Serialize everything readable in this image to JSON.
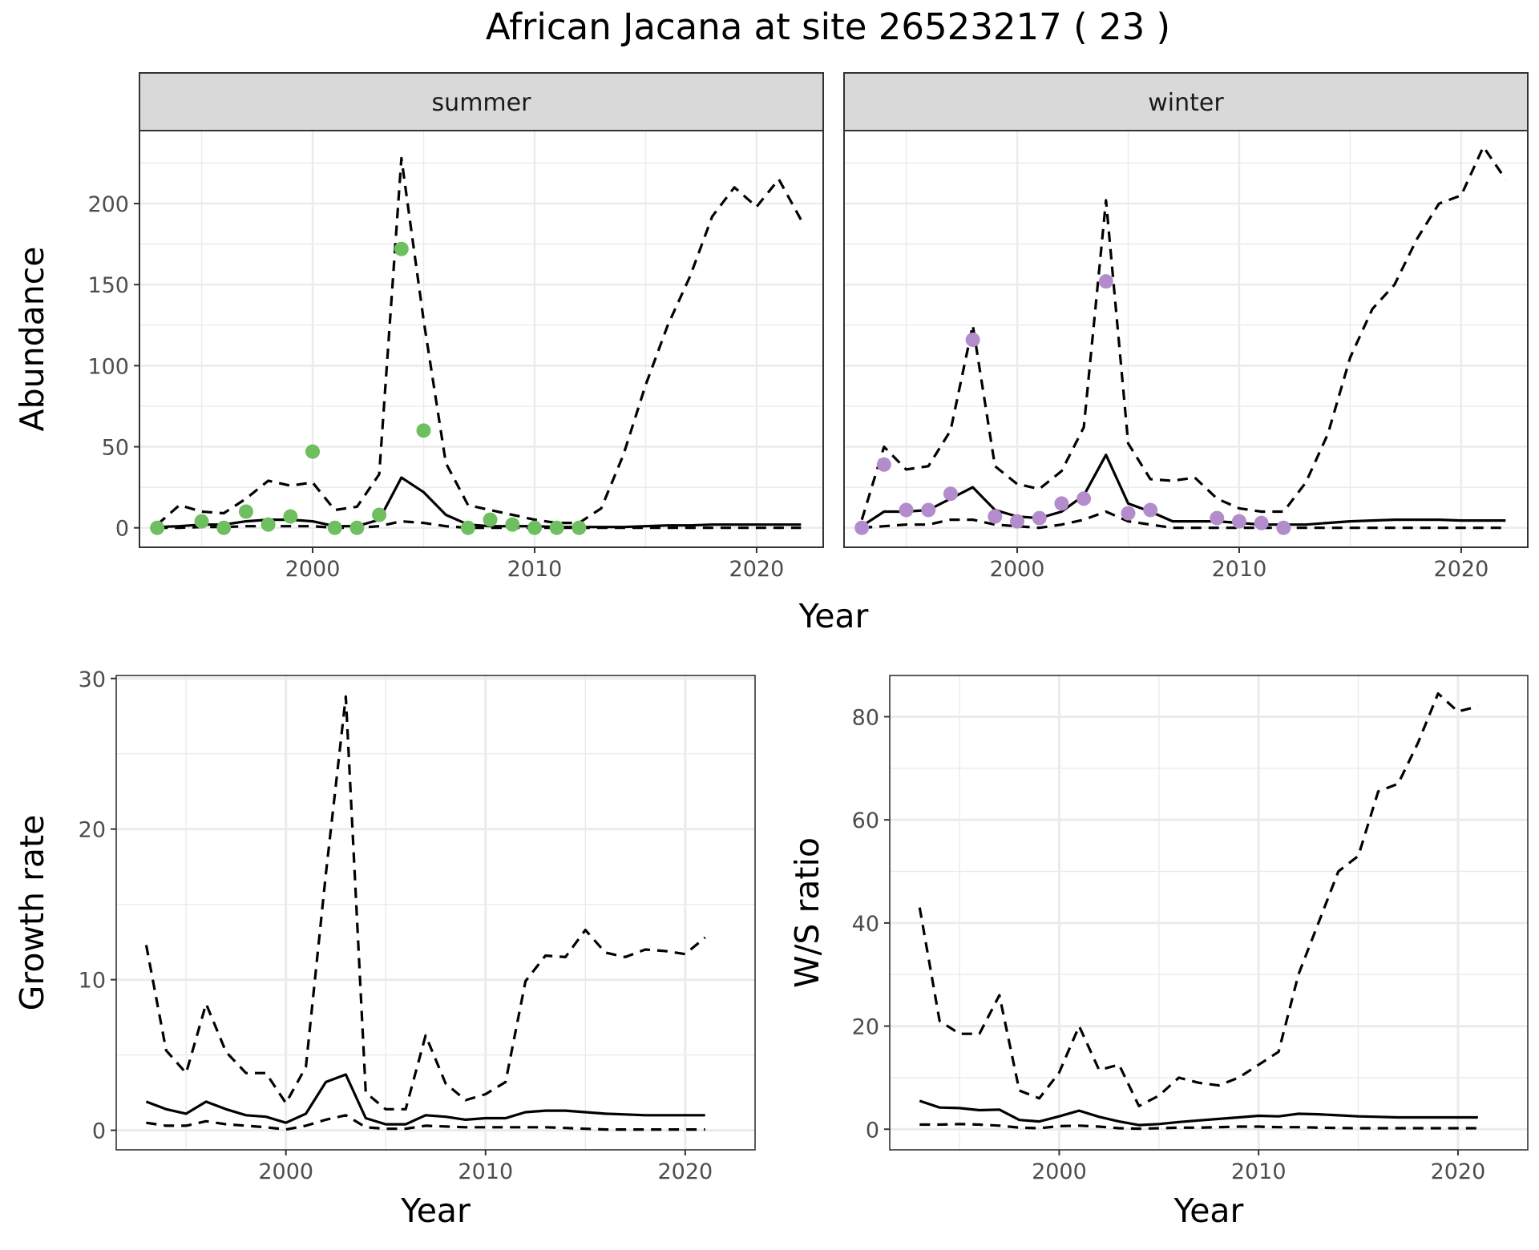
{
  "title": "African Jacana at site 26523217 ( 23 )",
  "colors": {
    "summer_points": "#6dbf5f",
    "winter_points": "#b38dcb",
    "line": "#000000",
    "strip_fill": "#d9d9d9",
    "grid": "#ebebeb"
  },
  "chart_data": [
    {
      "id": "abundance-summer",
      "type": "line",
      "facet": "summer",
      "xlabel": "Year",
      "ylabel": "Abundance",
      "xlim": [
        1992.2,
        2023.0
      ],
      "ylim": [
        -12,
        245
      ],
      "xticks": [
        2000,
        2010,
        2020
      ],
      "yticks": [
        0,
        50,
        100,
        150,
        200
      ],
      "grid": true,
      "series": [
        {
          "style": "solid",
          "x": [
            1993,
            1994,
            1995,
            1996,
            1997,
            1998,
            1999,
            2000,
            2001,
            2002,
            2003,
            2004,
            2005,
            2006,
            2007,
            2008,
            2009,
            2010,
            2011,
            2012,
            2013,
            2014,
            2015,
            2016,
            2017,
            2018,
            2019,
            2020,
            2021,
            2022
          ],
          "y": [
            0.5,
            1,
            2,
            2,
            4,
            5,
            5,
            4,
            1,
            1,
            5,
            31,
            22,
            8,
            2,
            1,
            1,
            1,
            0.5,
            0.5,
            0.5,
            0.5,
            1,
            1.5,
            1.5,
            2,
            2,
            2,
            2,
            2
          ]
        },
        {
          "style": "dashed",
          "x": [
            1993,
            1994,
            1995,
            1996,
            1997,
            1998,
            1999,
            2000,
            2001,
            2002,
            2003,
            2004,
            2005,
            2006,
            2007,
            2008,
            2009,
            2010,
            2011,
            2012,
            2013,
            2014,
            2015,
            2016,
            2017,
            2018,
            2019,
            2020,
            2021,
            2022
          ],
          "y": [
            2,
            14,
            10,
            9,
            18,
            29,
            26,
            28,
            11,
            13,
            33,
            228,
            128,
            40,
            14,
            11,
            8,
            5,
            3,
            3,
            12,
            45,
            88,
            125,
            155,
            192,
            210,
            198,
            215,
            190
          ]
        },
        {
          "style": "dashed",
          "x": [
            1993,
            1994,
            1995,
            1996,
            1997,
            1998,
            1999,
            2000,
            2001,
            2002,
            2003,
            2004,
            2005,
            2006,
            2007,
            2008,
            2009,
            2010,
            2011,
            2012,
            2013,
            2014,
            2015,
            2016,
            2017,
            2018,
            2019,
            2020,
            2021,
            2022
          ],
          "y": [
            0,
            0,
            0.5,
            0.5,
            1,
            1,
            1,
            1,
            0,
            0,
            1,
            4,
            3,
            1,
            0,
            0,
            0,
            0,
            0,
            0,
            0,
            0,
            0,
            0,
            0,
            0,
            0,
            0,
            0,
            0
          ]
        },
        {
          "style": "points",
          "x": [
            1993,
            1995,
            1996,
            1997,
            1998,
            1999,
            2000,
            2001,
            2002,
            2003,
            2004,
            2005,
            2007,
            2008,
            2009,
            2010,
            2011,
            2012
          ],
          "y": [
            0,
            4,
            0,
            10,
            2,
            7,
            47,
            0,
            0,
            8,
            172,
            60,
            0,
            5,
            2,
            0,
            0,
            0
          ]
        }
      ]
    },
    {
      "id": "abundance-winter",
      "type": "line",
      "facet": "winter",
      "xlabel": "Year",
      "ylabel": "Abundance",
      "xlim": [
        1992.2,
        2023.0
      ],
      "ylim": [
        -12,
        245
      ],
      "xticks": [
        2000,
        2010,
        2020
      ],
      "yticks": [
        0,
        50,
        100,
        150,
        200
      ],
      "grid": true,
      "series": [
        {
          "style": "solid",
          "x": [
            1993,
            1994,
            1995,
            1996,
            1997,
            1998,
            1999,
            2000,
            2001,
            2002,
            2003,
            2004,
            2005,
            2006,
            2007,
            2008,
            2009,
            2010,
            2011,
            2012,
            2013,
            2014,
            2015,
            2016,
            2017,
            2018,
            2019,
            2020,
            2021,
            2022
          ],
          "y": [
            1,
            10,
            10,
            11,
            18,
            25,
            11,
            7,
            6,
            10,
            20,
            45,
            15,
            10,
            4,
            4,
            4,
            3,
            2,
            2,
            2,
            3,
            4,
            4.5,
            5,
            5,
            5,
            4.5,
            4.5,
            4.5
          ]
        },
        {
          "style": "dashed",
          "x": [
            1993,
            1994,
            1995,
            1996,
            1997,
            1998,
            1999,
            2000,
            2001,
            2002,
            2003,
            2004,
            2005,
            2006,
            2007,
            2008,
            2009,
            2010,
            2011,
            2012,
            2013,
            2014,
            2015,
            2016,
            2017,
            2018,
            2019,
            2020,
            2021,
            2022
          ],
          "y": [
            5,
            50,
            36,
            38,
            60,
            125,
            38,
            27,
            24,
            35,
            62,
            202,
            52,
            30,
            29,
            31,
            18,
            12,
            10,
            10,
            28,
            58,
            105,
            135,
            150,
            178,
            200,
            205,
            235,
            215
          ]
        },
        {
          "style": "dashed",
          "x": [
            1993,
            1994,
            1995,
            1996,
            1997,
            1998,
            1999,
            2000,
            2001,
            2002,
            2003,
            2004,
            2005,
            2006,
            2007,
            2008,
            2009,
            2010,
            2011,
            2012,
            2013,
            2014,
            2015,
            2016,
            2017,
            2018,
            2019,
            2020,
            2021,
            2022
          ],
          "y": [
            0,
            1,
            2,
            2,
            5,
            5,
            2,
            1,
            0,
            2,
            5,
            10,
            4,
            2,
            0,
            0,
            0,
            0,
            0,
            0,
            0,
            0,
            0,
            0,
            0,
            0,
            0,
            0,
            0,
            0
          ]
        },
        {
          "style": "points",
          "x": [
            1993,
            1994,
            1995,
            1996,
            1997,
            1998,
            1999,
            2000,
            2001,
            2002,
            2003,
            2004,
            2005,
            2006,
            2009,
            2010,
            2011,
            2012
          ],
          "y": [
            0,
            39,
            11,
            11,
            21,
            116,
            7,
            4,
            6,
            15,
            18,
            152,
            9,
            11,
            6,
            4,
            3,
            0
          ]
        }
      ]
    },
    {
      "id": "growth-rate",
      "type": "line",
      "xlabel": "Year",
      "ylabel": "Growth rate",
      "xlim": [
        1991.5,
        2023.5
      ],
      "ylim": [
        -1.3,
        30.2
      ],
      "xticks": [
        2000,
        2010,
        2020
      ],
      "yticks": [
        0,
        10,
        20,
        30
      ],
      "grid": true,
      "series": [
        {
          "style": "solid",
          "x": [
            1993,
            1994,
            1995,
            1996,
            1997,
            1998,
            1999,
            2000,
            2001,
            2002,
            2003,
            2004,
            2005,
            2006,
            2007,
            2008,
            2009,
            2010,
            2011,
            2012,
            2013,
            2014,
            2015,
            2016,
            2017,
            2018,
            2019,
            2020,
            2021
          ],
          "y": [
            1.9,
            1.4,
            1.1,
            1.9,
            1.4,
            1.0,
            0.9,
            0.5,
            1.1,
            3.2,
            3.7,
            0.8,
            0.4,
            0.4,
            1.0,
            0.9,
            0.7,
            0.8,
            0.8,
            1.2,
            1.3,
            1.3,
            1.2,
            1.1,
            1.05,
            1.0,
            1.0,
            1.0,
            1.0
          ]
        },
        {
          "style": "dashed",
          "x": [
            1993,
            1994,
            1995,
            1996,
            1997,
            1998,
            1999,
            2000,
            2001,
            2002,
            2003,
            2004,
            2005,
            2006,
            2007,
            2008,
            2009,
            2010,
            2011,
            2012,
            2013,
            2014,
            2015,
            2016,
            2017,
            2018,
            2019,
            2020,
            2021
          ],
          "y": [
            12.3,
            5.3,
            3.8,
            8.4,
            5.2,
            3.8,
            3.8,
            1.8,
            4.2,
            17.0,
            28.8,
            2.5,
            1.4,
            1.4,
            6.3,
            3.1,
            2.0,
            2.4,
            3.2,
            9.9,
            11.6,
            11.5,
            13.3,
            11.8,
            11.5,
            12.0,
            11.9,
            11.7,
            12.8
          ]
        },
        {
          "style": "dashed",
          "x": [
            1993,
            1994,
            1995,
            1996,
            1997,
            1998,
            1999,
            2000,
            2001,
            2002,
            2003,
            2004,
            2005,
            2006,
            2007,
            2008,
            2009,
            2010,
            2011,
            2012,
            2013,
            2014,
            2015,
            2016,
            2017,
            2018,
            2019,
            2020,
            2021
          ],
          "y": [
            0.5,
            0.3,
            0.3,
            0.6,
            0.4,
            0.3,
            0.2,
            0.05,
            0.3,
            0.7,
            1.0,
            0.2,
            0.1,
            0.1,
            0.3,
            0.25,
            0.2,
            0.2,
            0.2,
            0.2,
            0.2,
            0.15,
            0.1,
            0.05,
            0.05,
            0.05,
            0.05,
            0.05,
            0.05
          ]
        }
      ]
    },
    {
      "id": "ws-ratio",
      "type": "line",
      "xlabel": "Year",
      "ylabel": "W/S ratio",
      "xlim": [
        1991.5,
        2023.5
      ],
      "ylim": [
        -4,
        88
      ],
      "xticks": [
        2000,
        2010,
        2020
      ],
      "yticks": [
        0,
        20,
        40,
        60,
        80
      ],
      "grid": true,
      "series": [
        {
          "style": "solid",
          "x": [
            1993,
            1994,
            1995,
            1996,
            1997,
            1998,
            1999,
            2000,
            2001,
            2002,
            2003,
            2004,
            2005,
            2006,
            2007,
            2008,
            2009,
            2010,
            2011,
            2012,
            2013,
            2014,
            2015,
            2016,
            2017,
            2018,
            2019,
            2020,
            2021
          ],
          "y": [
            5.5,
            4.2,
            4.1,
            3.7,
            3.8,
            1.8,
            1.5,
            2.5,
            3.6,
            2.4,
            1.5,
            0.8,
            1.0,
            1.4,
            1.7,
            2.0,
            2.3,
            2.6,
            2.5,
            3.0,
            2.9,
            2.7,
            2.5,
            2.4,
            2.3,
            2.3,
            2.3,
            2.3,
            2.3
          ]
        },
        {
          "style": "dashed",
          "x": [
            1993,
            1994,
            1995,
            1996,
            1997,
            1998,
            1999,
            2000,
            2001,
            2002,
            2003,
            2004,
            2005,
            2006,
            2007,
            2008,
            2009,
            2010,
            2011,
            2012,
            2013,
            2014,
            2015,
            2016,
            2017,
            2018,
            2019,
            2020,
            2021
          ],
          "y": [
            43,
            21,
            18.5,
            18.5,
            26,
            7.5,
            6,
            11,
            20,
            11.5,
            12.5,
            4.5,
            6.5,
            10,
            9,
            8.5,
            10,
            12.5,
            15,
            30,
            40,
            50,
            53,
            65.5,
            67,
            75,
            84.5,
            81,
            82
          ]
        },
        {
          "style": "dashed",
          "x": [
            1993,
            1994,
            1995,
            1996,
            1997,
            1998,
            1999,
            2000,
            2001,
            2002,
            2003,
            2004,
            2005,
            2006,
            2007,
            2008,
            2009,
            2010,
            2011,
            2012,
            2013,
            2014,
            2015,
            2016,
            2017,
            2018,
            2019,
            2020,
            2021
          ],
          "y": [
            0.9,
            0.9,
            1.0,
            0.9,
            0.7,
            0.3,
            0.2,
            0.6,
            0.7,
            0.5,
            0.2,
            0.1,
            0.2,
            0.3,
            0.3,
            0.4,
            0.5,
            0.5,
            0.4,
            0.4,
            0.3,
            0.25,
            0.2,
            0.2,
            0.2,
            0.2,
            0.2,
            0.2,
            0.2
          ]
        }
      ]
    }
  ]
}
